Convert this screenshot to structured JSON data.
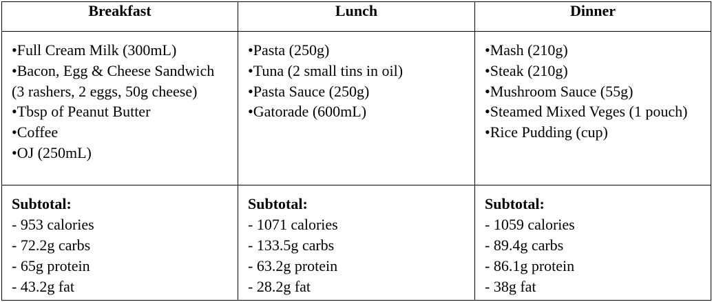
{
  "columns": [
    {
      "header": "Breakfast",
      "items": [
        "Full Cream Milk (300mL)",
        "Bacon, Egg & Cheese Sandwich (3 rashers, 2 eggs, 50g cheese)",
        "Tbsp of Peanut Butter",
        "Coffee",
        "OJ (250mL)"
      ],
      "subtotal_label": "Subtotal:",
      "subtotal": [
        "- 953 calories",
        "- 72.2g carbs",
        "- 65g protein",
        "- 43.2g fat"
      ]
    },
    {
      "header": "Lunch",
      "items": [
        "Pasta (250g)",
        "Tuna (2 small tins in oil)",
        "Pasta Sauce (250g)",
        "Gatorade (600mL)"
      ],
      "subtotal_label": "Subtotal:",
      "subtotal": [
        "- 1071 calories",
        "- 133.5g carbs",
        "- 63.2g protein",
        "- 28.2g fat"
      ]
    },
    {
      "header": "Dinner",
      "items": [
        "Mash (210g)",
        "Steak (210g)",
        "Mushroom Sauce (55g)",
        "Steamed Mixed Veges (1 pouch)",
        "Rice Pudding (cup)"
      ],
      "subtotal_label": "Subtotal:",
      "subtotal": [
        "- 1059 calories",
        "- 89.4g carbs",
        "- 86.1g protein",
        "- 38g fat"
      ]
    }
  ],
  "bullet_glyph": "•"
}
